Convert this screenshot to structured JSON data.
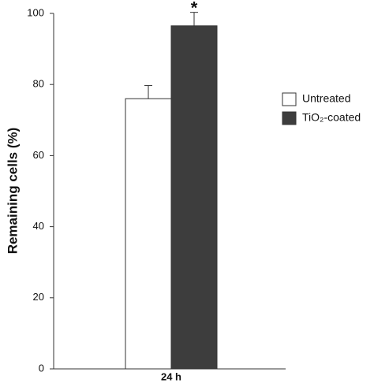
{
  "chart_data": {
    "type": "bar",
    "y_label": "Remaining cells (%)",
    "categories": [
      "24 h"
    ],
    "series": [
      {
        "name": "Untreated",
        "color": "#ffffff",
        "values": [
          76
        ],
        "errors": [
          3.7
        ]
      },
      {
        "name": "TiO₂-coated",
        "color": "#3d3d3d",
        "values": [
          96.5
        ],
        "errors": [
          3.8
        ]
      }
    ],
    "annotation": "*",
    "ylim": [
      0,
      100
    ],
    "yticks": [
      0,
      20,
      40,
      60,
      80,
      100
    ]
  }
}
